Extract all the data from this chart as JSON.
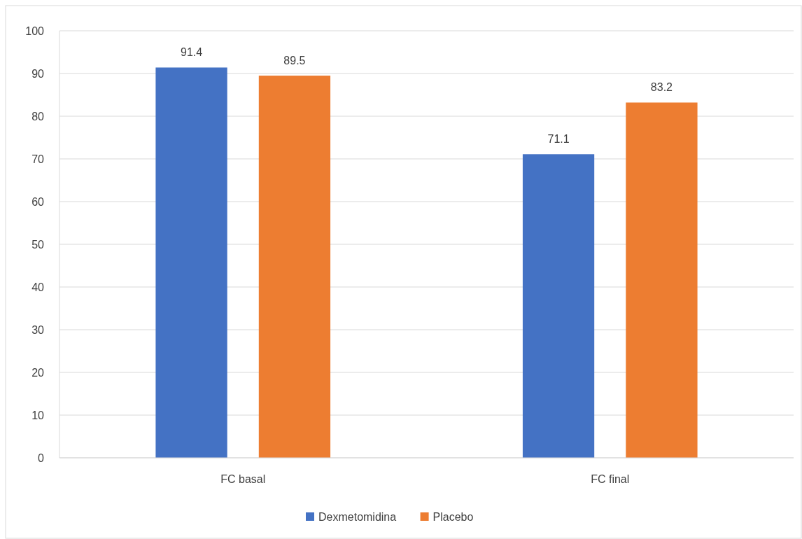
{
  "chart_data": {
    "type": "bar",
    "categories": [
      "FC basal",
      "FC final"
    ],
    "series": [
      {
        "name": "Dexmetomidina",
        "color": "#4472c4",
        "values": [
          91.4,
          71.1
        ]
      },
      {
        "name": "Placebo",
        "color": "#ed7d31",
        "values": [
          89.5,
          83.2
        ]
      }
    ],
    "ylim": [
      0,
      100
    ],
    "yticks": [
      0,
      10,
      20,
      30,
      40,
      50,
      60,
      70,
      80,
      90,
      100
    ],
    "grid": "y",
    "data_labels": true,
    "legend": "bottom"
  }
}
